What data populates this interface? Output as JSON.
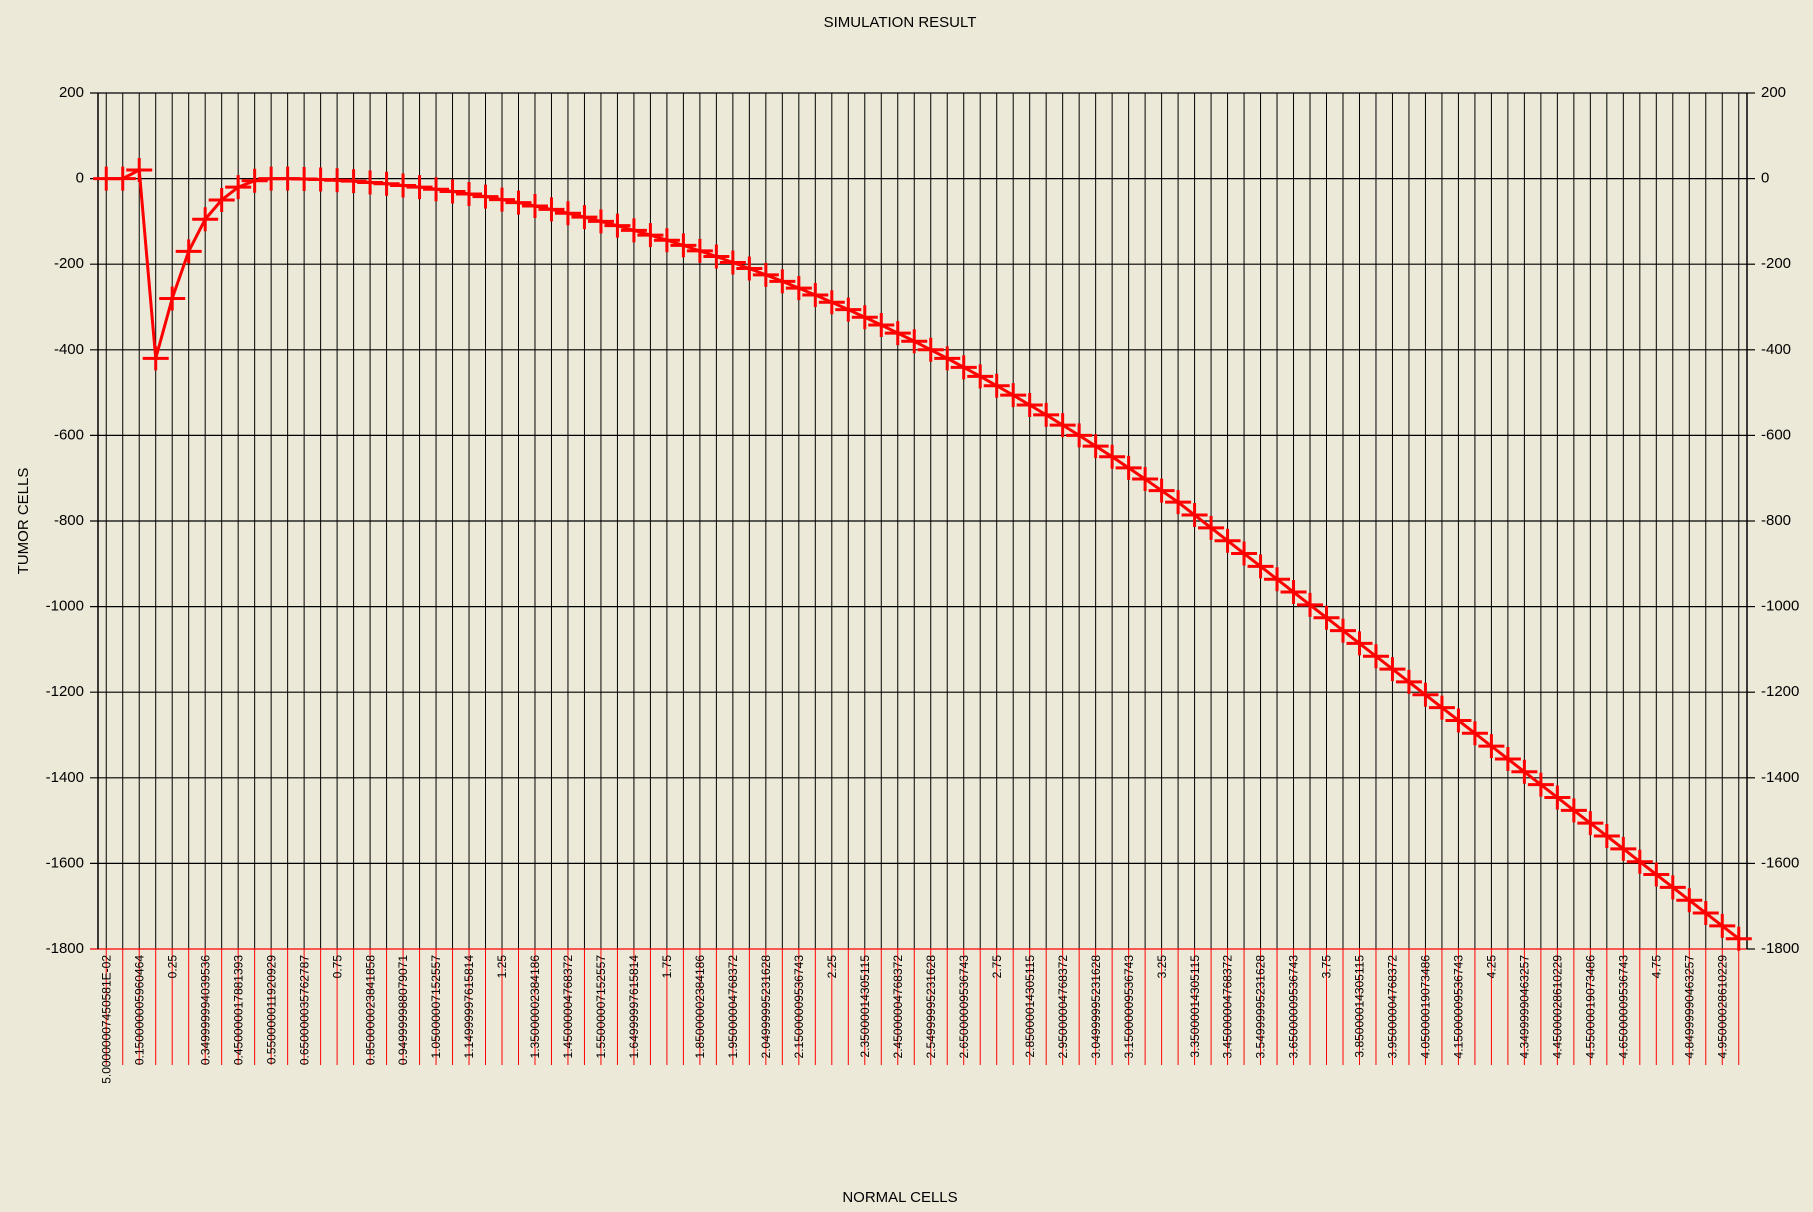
{
  "chart_data": {
    "type": "line",
    "title": "SIMULATION RESULT",
    "x_label": "NORMAL CELLS",
    "y_label": "TUMOR CELLS",
    "color": "#ff0000",
    "marker": "plus",
    "grid": true,
    "categories": [
      "5.00000007450581E-02",
      null,
      "0.150000005960464",
      null,
      "0.25",
      null,
      "0.349999994039536",
      null,
      "0.450000017881393",
      null,
      "0.550000011920929",
      null,
      "0.650000035762787",
      null,
      "0.75",
      null,
      "0.850000023841858",
      null,
      "0.949999988079071",
      null,
      "1.05000007152557",
      null,
      "1.14999997615814",
      null,
      "1.25",
      null,
      "1.35000002384186",
      null,
      "1.45000004768372",
      null,
      "1.55000007152557",
      null,
      "1.64999997615814",
      null,
      "1.75",
      null,
      "1.85000002384186",
      null,
      "1.95000004768372",
      null,
      "2.04999995231628",
      null,
      "2.15000009536743",
      null,
      "2.25",
      null,
      "2.35000014305115",
      null,
      "2.45000004768372",
      null,
      "2.54999995231628",
      null,
      "2.65000009536743",
      null,
      "2.75",
      null,
      "2.85000014305115",
      null,
      "2.95000004768372",
      null,
      "3.04999995231628",
      null,
      "3.15000009536743",
      null,
      "3.25",
      null,
      "3.35000014305115",
      null,
      "3.45000004768372",
      null,
      "3.54999995231628",
      null,
      "3.65000009536743",
      null,
      "3.75",
      null,
      "3.85000014305115",
      null,
      "3.95000004768372",
      null,
      "4.05000019073486",
      null,
      "4.15000009536743",
      null,
      "4.25",
      null,
      "4.34999990463257",
      null,
      "4.45000028610229",
      null,
      "4.55000019073486",
      null,
      "4.65000009536743",
      null,
      "4.75",
      null,
      "4.84999990463257",
      null,
      "4.95000028610229",
      null
    ],
    "values": [
      0,
      0,
      20,
      -420,
      -280,
      -170,
      -95,
      -50,
      -20,
      -5,
      0,
      0,
      -1,
      -2,
      -4,
      -6,
      -9,
      -12,
      -16,
      -20,
      -25,
      -30,
      -36,
      -42,
      -49,
      -56,
      -64,
      -72,
      -81,
      -90,
      -100,
      -110,
      -121,
      -132,
      -144,
      -156,
      -169,
      -182,
      -196,
      -210,
      -225,
      -240,
      -256,
      -272,
      -289,
      -306,
      -324,
      -342,
      -361,
      -380,
      -400,
      -420,
      -441,
      -462,
      -484,
      -506,
      -529,
      -552,
      -576,
      -600,
      -625,
      -650,
      -676,
      -702,
      -729,
      -756,
      -786,
      -816,
      -846,
      -876,
      -906,
      -936,
      -966,
      -996,
      -1026,
      -1056,
      -1086,
      -1116,
      -1146,
      -1176,
      -1206,
      -1236,
      -1266,
      -1296,
      -1326,
      -1356,
      -1386,
      -1416,
      -1446,
      -1476,
      -1506,
      -1536,
      -1566,
      -1596,
      -1626,
      -1656,
      -1686,
      -1716,
      -1746,
      -1776
    ],
    "ylim": [
      -1800,
      200
    ],
    "yticks": [
      200,
      0,
      -200,
      -400,
      -600,
      -800,
      -1000,
      -1200,
      -1400,
      -1600,
      -1800
    ],
    "y2lim": [
      -1800,
      200
    ],
    "y2ticks": [
      200,
      0,
      -200,
      -400,
      -600,
      -800,
      -1000,
      -1200,
      -1400,
      -1600,
      -1800
    ]
  }
}
